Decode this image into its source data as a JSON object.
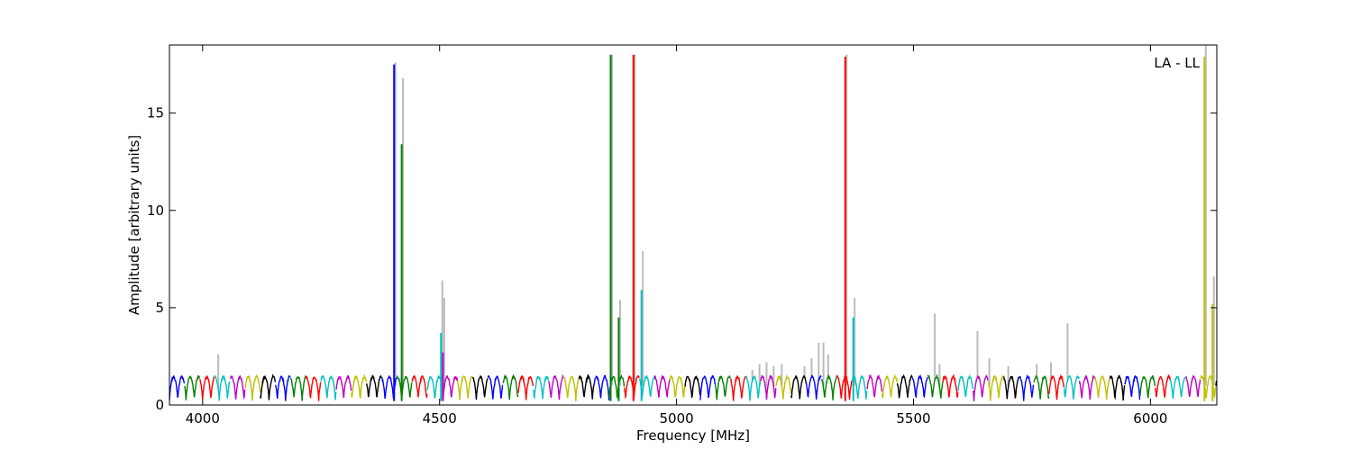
{
  "chart_data": {
    "type": "line",
    "title": "",
    "xlabel": "Frequency [MHz]",
    "ylabel": "Amplitude [arbitrary units]",
    "xlim": [
      3930,
      6140
    ],
    "ylim": [
      0,
      18.5
    ],
    "x_ticks": [
      4000,
      4500,
      5000,
      5500,
      6000
    ],
    "x_tick_labels": [
      "4000",
      "4500",
      "5000",
      "5500",
      "6000"
    ],
    "y_ticks": [
      0,
      5,
      10,
      15
    ],
    "y_tick_labels": [
      "0",
      "5",
      "10",
      "15"
    ],
    "grid": false,
    "legend": "none",
    "annotation": {
      "text": "LA - LL",
      "placement": "top-right"
    },
    "background_series": {
      "name": "",
      "color": "#bbbbbb"
    },
    "band": {
      "start": 3930,
      "width": 32,
      "period": 17.5,
      "trough": 0.25,
      "crest": 1.45,
      "colors": [
        "#0000ff",
        "#008000",
        "#ff0000",
        "#00bfbf",
        "#bf00bf",
        "#bfbf00",
        "#000000"
      ]
    },
    "spikes": [
      {
        "x": 4404,
        "value": 17.5,
        "gray_value": 17.6
      },
      {
        "x": 4420,
        "value": 13.4,
        "gray_value": 16.8
      },
      {
        "x": 4503,
        "value": 3.7,
        "gray_value": 6.4
      },
      {
        "x": 4507,
        "value": 2.7,
        "gray_value": 5.5
      },
      {
        "x": 4861,
        "value": 18.0,
        "gray_value": 18.0
      },
      {
        "x": 4878,
        "value": 4.5,
        "gray_value": 5.4
      },
      {
        "x": 4909,
        "value": 18.0,
        "gray_value": 18.0
      },
      {
        "x": 4926,
        "value": 5.9,
        "gray_value": 7.9
      },
      {
        "x": 5356,
        "value": 17.9,
        "gray_value": 18.0
      },
      {
        "x": 5373,
        "value": 4.5,
        "gray_value": 5.5
      },
      {
        "x": 6114,
        "value": 17.9,
        "gray_value": 18.5
      },
      {
        "x": 6131,
        "value": 5.2,
        "gray_value": 6.6
      }
    ],
    "gray_bumps": [
      {
        "x": 4033,
        "value": 2.6
      },
      {
        "x": 5160,
        "value": 1.8
      },
      {
        "x": 5175,
        "value": 2.1
      },
      {
        "x": 5190,
        "value": 2.2
      },
      {
        "x": 5205,
        "value": 2.0
      },
      {
        "x": 5222,
        "value": 2.1
      },
      {
        "x": 5270,
        "value": 2.0
      },
      {
        "x": 5285,
        "value": 2.4
      },
      {
        "x": 5300,
        "value": 3.2
      },
      {
        "x": 5310,
        "value": 3.2
      },
      {
        "x": 5320,
        "value": 2.6
      },
      {
        "x": 5545,
        "value": 4.7
      },
      {
        "x": 5555,
        "value": 2.1
      },
      {
        "x": 5635,
        "value": 3.8
      },
      {
        "x": 5660,
        "value": 2.4
      },
      {
        "x": 5700,
        "value": 2.0
      },
      {
        "x": 5760,
        "value": 2.1
      },
      {
        "x": 5790,
        "value": 2.2
      },
      {
        "x": 5825,
        "value": 4.2
      }
    ]
  }
}
